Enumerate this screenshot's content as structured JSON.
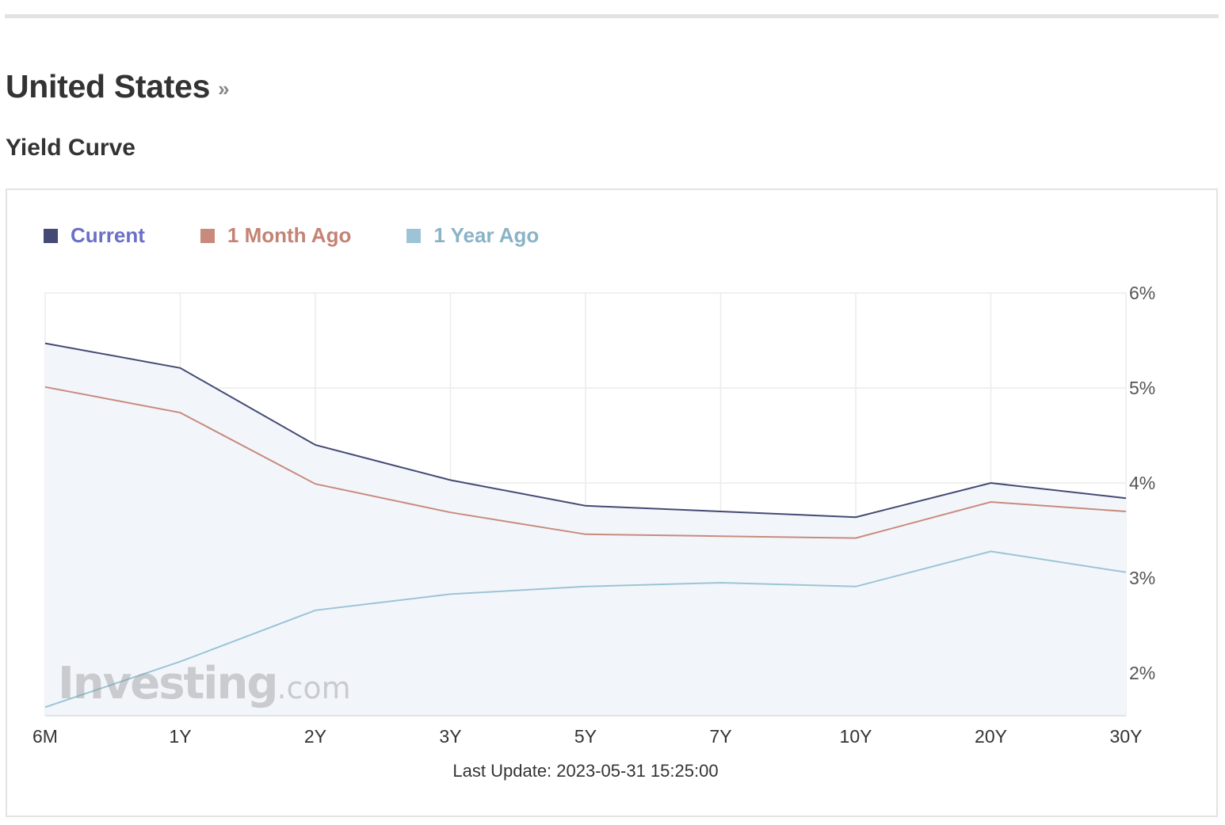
{
  "header": {
    "title": "United States",
    "title_chevron": "»",
    "subtitle": "Yield Curve"
  },
  "watermark": {
    "brand": "Investing",
    "suffix": ".com"
  },
  "last_update_text": "Last Update: 2023-05-31 15:25:00",
  "chart_data": {
    "type": "line",
    "categories": [
      "6M",
      "1Y",
      "2Y",
      "3Y",
      "5Y",
      "7Y",
      "10Y",
      "20Y",
      "30Y"
    ],
    "series": [
      {
        "name": "Current",
        "color": "#444a73",
        "values": [
          5.47,
          5.21,
          4.4,
          4.03,
          3.76,
          3.7,
          3.64,
          4.0,
          3.84
        ]
      },
      {
        "name": "1 Month Ago",
        "color": "#c98a7e",
        "values": [
          5.01,
          4.74,
          3.99,
          3.69,
          3.46,
          3.44,
          3.42,
          3.8,
          3.7
        ]
      },
      {
        "name": "1 Year Ago",
        "color": "#9cc4d6",
        "values": [
          1.64,
          2.12,
          2.66,
          2.83,
          2.91,
          2.95,
          2.91,
          3.28,
          3.06
        ]
      }
    ],
    "y_ticks": [
      "6%",
      "5%",
      "4%",
      "3%",
      "2%"
    ],
    "y_tick_values": [
      6,
      5,
      4,
      3,
      2
    ],
    "ylim": [
      1.55,
      6
    ],
    "y_axis_position": "right",
    "grid": true,
    "legend_position": "top-left",
    "area_fill": "#f2f6fb"
  }
}
